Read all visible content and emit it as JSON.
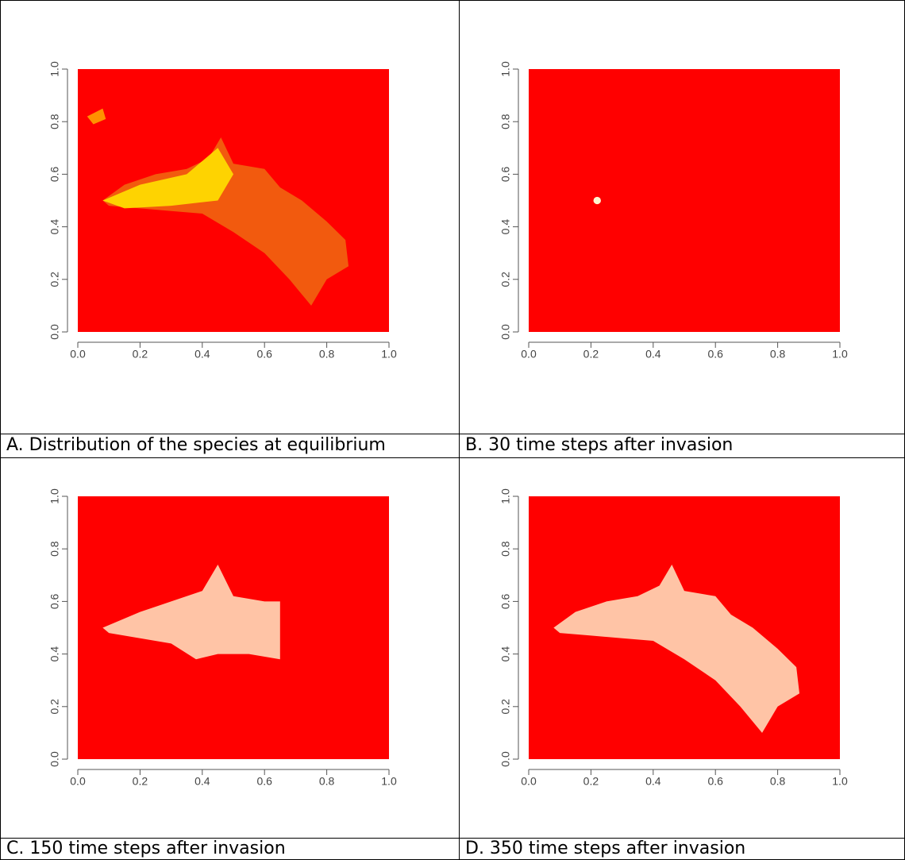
{
  "panels": [
    {
      "caption": "A. Distribution of the species at equilibrium",
      "xlim": [
        0,
        1
      ],
      "ylim": [
        0,
        1
      ],
      "xticks": [
        {
          "value": 0,
          "label": "0.0"
        },
        0.2,
        0.4,
        0.6,
        0.8,
        {
          "value": 1,
          "label": "1.0"
        }
      ],
      "yticks": [
        {
          "value": 0,
          "label": "0.0"
        },
        0.2,
        0.4,
        0.6,
        0.8,
        {
          "value": 1,
          "label": "1.0"
        }
      ]
    },
    {
      "caption": "B. 30 time steps after invasion",
      "xlim": [
        0,
        1
      ],
      "ylim": [
        0,
        1
      ],
      "xticks": [
        {
          "value": 0,
          "label": "0.0"
        },
        0.2,
        0.4,
        0.6,
        0.8,
        {
          "value": 1,
          "label": "1.0"
        }
      ],
      "yticks": [
        {
          "value": 0,
          "label": "0.0"
        },
        0.2,
        0.4,
        0.6,
        0.8,
        {
          "value": 1,
          "label": "1.0"
        }
      ]
    },
    {
      "caption": "C. 150 time steps after invasion",
      "xlim": [
        0,
        1
      ],
      "ylim": [
        0,
        1
      ],
      "xticks": [
        {
          "value": 0,
          "label": "0.0"
        },
        0.2,
        0.4,
        0.6,
        0.8,
        {
          "value": 1,
          "label": "1.0"
        }
      ],
      "yticks": [
        {
          "value": 0,
          "label": "0.0"
        },
        0.2,
        0.4,
        0.6,
        0.8,
        {
          "value": 1,
          "label": "1.0"
        }
      ]
    },
    {
      "caption": "D. 350 time steps after invasion",
      "xlim": [
        0,
        1
      ],
      "ylim": [
        0,
        1
      ],
      "xticks": [
        {
          "value": 0,
          "label": "0.0"
        },
        0.2,
        0.4,
        0.6,
        0.8,
        {
          "value": 1,
          "label": "1.0"
        }
      ],
      "yticks": [
        {
          "value": 0,
          "label": "0.0"
        },
        0.2,
        0.4,
        0.6,
        0.8,
        {
          "value": 1,
          "label": "1.0"
        }
      ]
    }
  ]
}
